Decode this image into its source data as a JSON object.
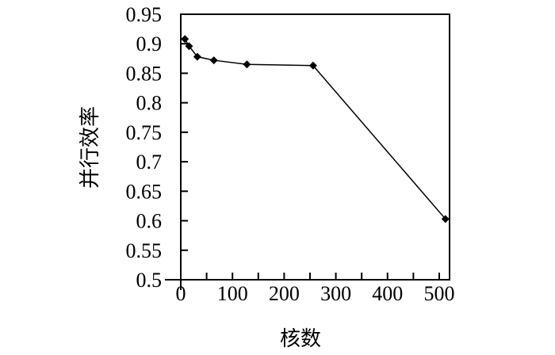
{
  "figure": {
    "background_color": "#ffffff",
    "axis_color": "#000000",
    "text_color": "#000000"
  },
  "chart_data": {
    "type": "line",
    "title": "",
    "xlabel": "核数",
    "ylabel": "并行效率",
    "x": [
      8,
      16,
      32,
      64,
      128,
      256,
      512
    ],
    "y": [
      0.908,
      0.896,
      0.878,
      0.872,
      0.865,
      0.863,
      0.603
    ],
    "series_name": "并行效率",
    "xlim": [
      0,
      520
    ],
    "ylim": [
      0.5,
      0.95
    ],
    "xticks_major": [
      0,
      100,
      200,
      300,
      400,
      500
    ],
    "xtick_labels": [
      "0",
      "100",
      "200",
      "300",
      "400",
      "500"
    ],
    "xticks_minor": [
      50,
      150,
      250,
      350,
      450
    ],
    "yticks": [
      0.95,
      0.9,
      0.85,
      0.8,
      0.75,
      0.7,
      0.65,
      0.6,
      0.55,
      0.5
    ],
    "ytick_labels": [
      "0.95",
      "0.9",
      "0.85",
      "0.8",
      "0.75",
      "0.7",
      "0.65",
      "0.6",
      "0.55",
      "0.5"
    ],
    "marker": "diamond",
    "marker_color": "#000000",
    "line_color": "#000000",
    "grid": false,
    "legend_position": "none"
  }
}
